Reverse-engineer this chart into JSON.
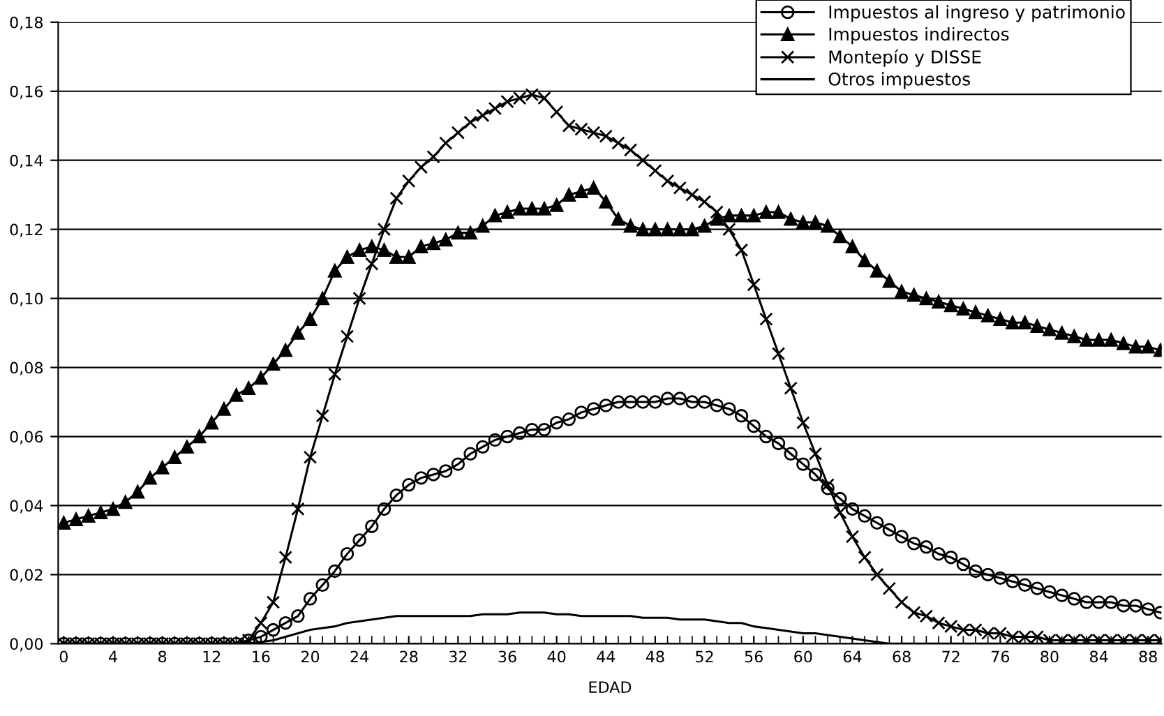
{
  "chart_data": {
    "type": "line",
    "xlabel": "EDAD",
    "x": [
      0,
      1,
      2,
      3,
      4,
      5,
      6,
      7,
      8,
      9,
      10,
      11,
      12,
      13,
      14,
      15,
      16,
      17,
      18,
      19,
      20,
      21,
      22,
      23,
      24,
      25,
      26,
      27,
      28,
      29,
      30,
      31,
      32,
      33,
      34,
      35,
      36,
      37,
      38,
      39,
      40,
      41,
      42,
      43,
      44,
      45,
      46,
      47,
      48,
      49,
      50,
      51,
      52,
      53,
      54,
      55,
      56,
      57,
      58,
      59,
      60,
      61,
      62,
      63,
      64,
      65,
      66,
      67,
      68,
      69,
      70,
      71,
      72,
      73,
      74,
      75,
      76,
      77,
      78,
      79,
      80,
      81,
      82,
      83,
      84,
      85,
      86,
      87,
      88,
      89
    ],
    "xlim": [
      -0.45,
      89.1
    ],
    "xticks": [
      0,
      4,
      8,
      12,
      16,
      20,
      24,
      28,
      32,
      36,
      40,
      44,
      48,
      52,
      56,
      60,
      64,
      68,
      72,
      76,
      80,
      84,
      88
    ],
    "ylim": [
      0,
      0.18
    ],
    "yticks": [
      {
        "value": 0,
        "label": "0,00"
      },
      {
        "value": 0.02,
        "label": "0,02"
      },
      {
        "value": 0.04,
        "label": "0,04"
      },
      {
        "value": 0.06,
        "label": "0,06"
      },
      {
        "value": 0.08,
        "label": "0,08"
      },
      {
        "value": 0.1,
        "label": "0,10"
      },
      {
        "value": 0.12,
        "label": "0,12"
      },
      {
        "value": 0.14,
        "label": "0,14"
      },
      {
        "value": 0.16,
        "label": "0,16"
      },
      {
        "value": 0.18,
        "label": "0,18"
      }
    ],
    "grid": "y",
    "legend": "top right",
    "series": [
      {
        "name": "Impuestos al ingreso y patrimonio",
        "color": "#000000",
        "marker": "circle",
        "values": [
          0,
          0,
          0,
          0,
          0,
          0,
          0,
          0,
          0,
          0,
          0,
          0,
          0,
          0,
          0,
          0.001,
          0.002,
          0.004,
          0.006,
          0.008,
          0.013,
          0.017,
          0.021,
          0.026,
          0.03,
          0.034,
          0.039,
          0.043,
          0.046,
          0.048,
          0.049,
          0.05,
          0.052,
          0.055,
          0.057,
          0.059,
          0.06,
          0.061,
          0.062,
          0.062,
          0.064,
          0.065,
          0.067,
          0.068,
          0.069,
          0.07,
          0.07,
          0.07,
          0.07,
          0.071,
          0.071,
          0.07,
          0.07,
          0.069,
          0.068,
          0.066,
          0.063,
          0.06,
          0.058,
          0.055,
          0.052,
          0.049,
          0.045,
          0.042,
          0.039,
          0.037,
          0.035,
          0.033,
          0.031,
          0.029,
          0.028,
          0.026,
          0.025,
          0.023,
          0.021,
          0.02,
          0.019,
          0.018,
          0.017,
          0.016,
          0.015,
          0.014,
          0.013,
          0.012,
          0.012,
          0.012,
          0.011,
          0.011,
          0.01,
          0.009
        ]
      },
      {
        "name": "Impuestos indirectos",
        "color": "#000000",
        "marker": "triangle",
        "values": [
          0.035,
          0.036,
          0.037,
          0.038,
          0.039,
          0.041,
          0.044,
          0.048,
          0.051,
          0.054,
          0.057,
          0.06,
          0.064,
          0.068,
          0.072,
          0.074,
          0.077,
          0.081,
          0.085,
          0.09,
          0.094,
          0.1,
          0.108,
          0.112,
          0.114,
          0.115,
          0.114,
          0.112,
          0.112,
          0.115,
          0.116,
          0.117,
          0.119,
          0.119,
          0.121,
          0.124,
          0.125,
          0.126,
          0.126,
          0.126,
          0.127,
          0.13,
          0.131,
          0.132,
          0.128,
          0.123,
          0.121,
          0.12,
          0.12,
          0.12,
          0.12,
          0.12,
          0.121,
          0.123,
          0.124,
          0.124,
          0.124,
          0.125,
          0.125,
          0.123,
          0.122,
          0.122,
          0.121,
          0.118,
          0.115,
          0.111,
          0.108,
          0.105,
          0.102,
          0.101,
          0.1,
          0.099,
          0.098,
          0.097,
          0.096,
          0.095,
          0.094,
          0.093,
          0.093,
          0.092,
          0.091,
          0.09,
          0.089,
          0.088,
          0.088,
          0.088,
          0.087,
          0.086,
          0.086,
          0.085
        ]
      },
      {
        "name": "Montepío y DISSE",
        "color": "#000000",
        "marker": "cross",
        "values": [
          0,
          0,
          0,
          0,
          0,
          0,
          0,
          0,
          0,
          0,
          0,
          0,
          0,
          0,
          0,
          0.001,
          0.006,
          0.012,
          0.025,
          0.039,
          0.054,
          0.066,
          0.078,
          0.089,
          0.1,
          0.11,
          0.12,
          0.129,
          0.134,
          0.138,
          0.141,
          0.145,
          0.148,
          0.151,
          0.153,
          0.155,
          0.157,
          0.158,
          0.159,
          0.158,
          0.154,
          0.15,
          0.149,
          0.148,
          0.147,
          0.145,
          0.143,
          0.14,
          0.137,
          0.134,
          0.132,
          0.13,
          0.128,
          0.125,
          0.12,
          0.114,
          0.104,
          0.094,
          0.084,
          0.074,
          0.064,
          0.055,
          0.046,
          0.038,
          0.031,
          0.025,
          0.02,
          0.016,
          0.012,
          0.009,
          0.008,
          0.006,
          0.005,
          0.004,
          0.004,
          0.003,
          0.003,
          0.002,
          0.002,
          0.002,
          0.001,
          0.001,
          0.001,
          0.001,
          0.001,
          0.001,
          0.001,
          0.001,
          0.001,
          0.001
        ]
      },
      {
        "name": "Otros impuestos",
        "color": "#000000",
        "marker": "none",
        "values": [
          0,
          0,
          0,
          0,
          0,
          0,
          0,
          0,
          0,
          0,
          0,
          0,
          0,
          0,
          0,
          0,
          0.0005,
          0.001,
          0.002,
          0.003,
          0.004,
          0.0045,
          0.005,
          0.006,
          0.0065,
          0.007,
          0.0075,
          0.008,
          0.008,
          0.008,
          0.008,
          0.008,
          0.008,
          0.008,
          0.0085,
          0.0085,
          0.0085,
          0.009,
          0.009,
          0.009,
          0.0085,
          0.0085,
          0.008,
          0.008,
          0.008,
          0.008,
          0.008,
          0.0075,
          0.0075,
          0.0075,
          0.007,
          0.007,
          0.007,
          0.0065,
          0.006,
          0.006,
          0.005,
          0.0045,
          0.004,
          0.0035,
          0.003,
          0.003,
          0.0025,
          0.002,
          0.0015,
          0.001,
          0.0005,
          0,
          0,
          0,
          0,
          0,
          0,
          0,
          0,
          0,
          0,
          0,
          0,
          0,
          0,
          0,
          0,
          0,
          0,
          0,
          0,
          0,
          0,
          0
        ]
      }
    ]
  }
}
